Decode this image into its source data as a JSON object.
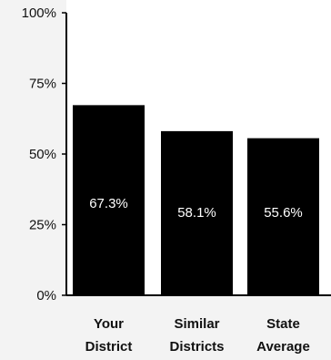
{
  "chart_data": {
    "type": "bar",
    "categories": [
      [
        "Your",
        "District"
      ],
      [
        "Similar",
        "Districts"
      ],
      [
        "State",
        "Average"
      ]
    ],
    "values": [
      67.3,
      58.1,
      55.6
    ],
    "value_labels": [
      "67.3%",
      "58.1%",
      "55.6%"
    ],
    "y_ticks": [
      0,
      25,
      50,
      75,
      100
    ],
    "y_tick_labels": [
      "0%",
      "25%",
      "50%",
      "75%",
      "100%"
    ],
    "ylim": [
      0,
      100
    ],
    "grid": false,
    "colors": {
      "bar": "#000000",
      "background_plot": "#ffffff",
      "background_page": "#f3f3f3",
      "axis": "#000000",
      "bar_label": "#ffffff"
    }
  }
}
